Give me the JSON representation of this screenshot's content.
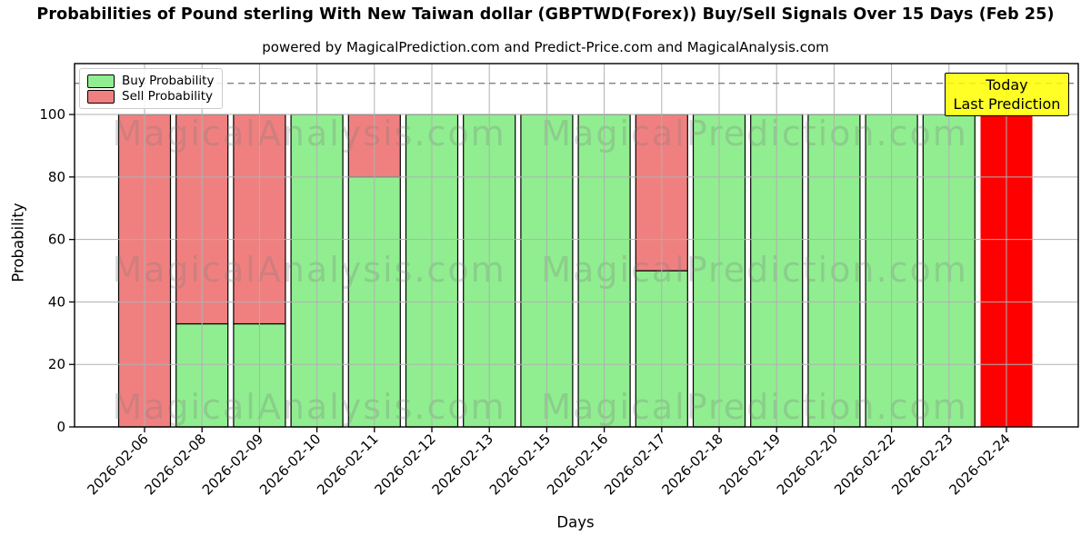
{
  "legend": {
    "items": [
      {
        "label": "Buy Probability",
        "color": "#90EE90"
      },
      {
        "label": "Sell Probability",
        "color": "#F08080"
      }
    ]
  },
  "annotation": {
    "line1": "Today",
    "line2": "Last Prediction",
    "bg": "#FFFF00"
  },
  "watermarks": [
    "MagicalAnalysis.com",
    "MagicalPrediction.com"
  ],
  "colors": {
    "buy": "#90EE90",
    "sell": "#F08080",
    "today_bar": "#FF0000",
    "grid": "#b0b0b0",
    "dashed_guide": "#808080",
    "annotation_bg": "#FFFF00"
  },
  "chart_data": {
    "type": "bar",
    "stacked": true,
    "title": "Probabilities of Pound sterling With New Taiwan dollar (GBPTWD(Forex)) Buy/Sell Signals Over 15 Days (Feb 25)",
    "subtitle": "powered by MagicalPrediction.com and Predict-Price.com and MagicalAnalysis.com",
    "xlabel": "Days",
    "ylabel": "Probability",
    "ylim": [
      0,
      116.3
    ],
    "yticks": [
      0,
      20,
      40,
      60,
      80,
      100
    ],
    "dashed_guide_y": 110,
    "grid": true,
    "grid_over_bars": true,
    "legend_position": "upper left",
    "categories": [
      "2026-02-06",
      "2026-02-08",
      "2026-02-09",
      "2026-02-10",
      "2026-02-11",
      "2026-02-12",
      "2026-02-13",
      "2026-02-15",
      "2026-02-16",
      "2026-02-17",
      "2026-02-18",
      "2026-02-19",
      "2026-02-20",
      "2026-02-22",
      "2026-02-23",
      "2026-02-24"
    ],
    "series": [
      {
        "name": "Buy Probability",
        "color": "#90EE90",
        "edge": true,
        "values": [
          0,
          33,
          33,
          100,
          80,
          100,
          100,
          100,
          100,
          50,
          100,
          100,
          100,
          100,
          100,
          0
        ]
      },
      {
        "name": "Sell Probability",
        "color": "#F08080",
        "edge": true,
        "values": [
          100,
          67,
          67,
          0,
          20,
          0,
          0,
          0,
          0,
          50,
          0,
          0,
          0,
          0,
          0,
          0
        ]
      },
      {
        "name": "Today / Last Prediction",
        "color": "#FF0000",
        "edge": false,
        "values": [
          0,
          0,
          0,
          0,
          0,
          0,
          0,
          0,
          0,
          0,
          0,
          0,
          0,
          0,
          0,
          100
        ]
      }
    ]
  }
}
